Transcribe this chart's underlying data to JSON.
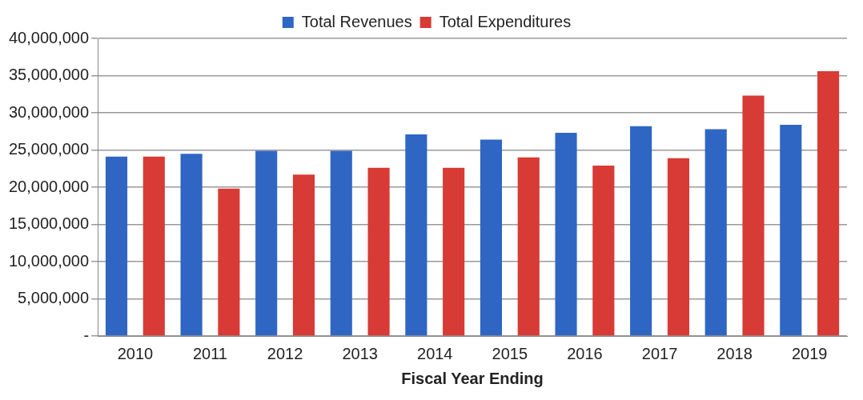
{
  "chart_data": {
    "type": "bar",
    "xlabel": "Fiscal Year Ending",
    "categories": [
      "2010",
      "2011",
      "2012",
      "2013",
      "2014",
      "2015",
      "2016",
      "2017",
      "2018",
      "2019"
    ],
    "series": [
      {
        "name": "Total Revenues",
        "color": "#2f66c4",
        "values": [
          24100000,
          24500000,
          24900000,
          24900000,
          27100000,
          26400000,
          27300000,
          28200000,
          27800000,
          28400000
        ]
      },
      {
        "name": "Total Expenditures",
        "color": "#d83a35",
        "values": [
          24100000,
          19800000,
          21700000,
          22600000,
          22600000,
          24000000,
          22900000,
          23900000,
          32300000,
          35600000
        ]
      }
    ],
    "ylim": [
      0,
      40000000
    ],
    "yticks": [
      {
        "value": 0,
        "label": "-"
      },
      {
        "value": 5000000,
        "label": "5,000,000"
      },
      {
        "value": 10000000,
        "label": "10,000,000"
      },
      {
        "value": 15000000,
        "label": "15,000,000"
      },
      {
        "value": 20000000,
        "label": "20,000,000"
      },
      {
        "value": 25000000,
        "label": "25,000,000"
      },
      {
        "value": 30000000,
        "label": "30,000,000"
      },
      {
        "value": 35000000,
        "label": "35,000,000"
      },
      {
        "value": 40000000,
        "label": "40,000,000"
      }
    ],
    "grid": "y",
    "legend": "top"
  }
}
